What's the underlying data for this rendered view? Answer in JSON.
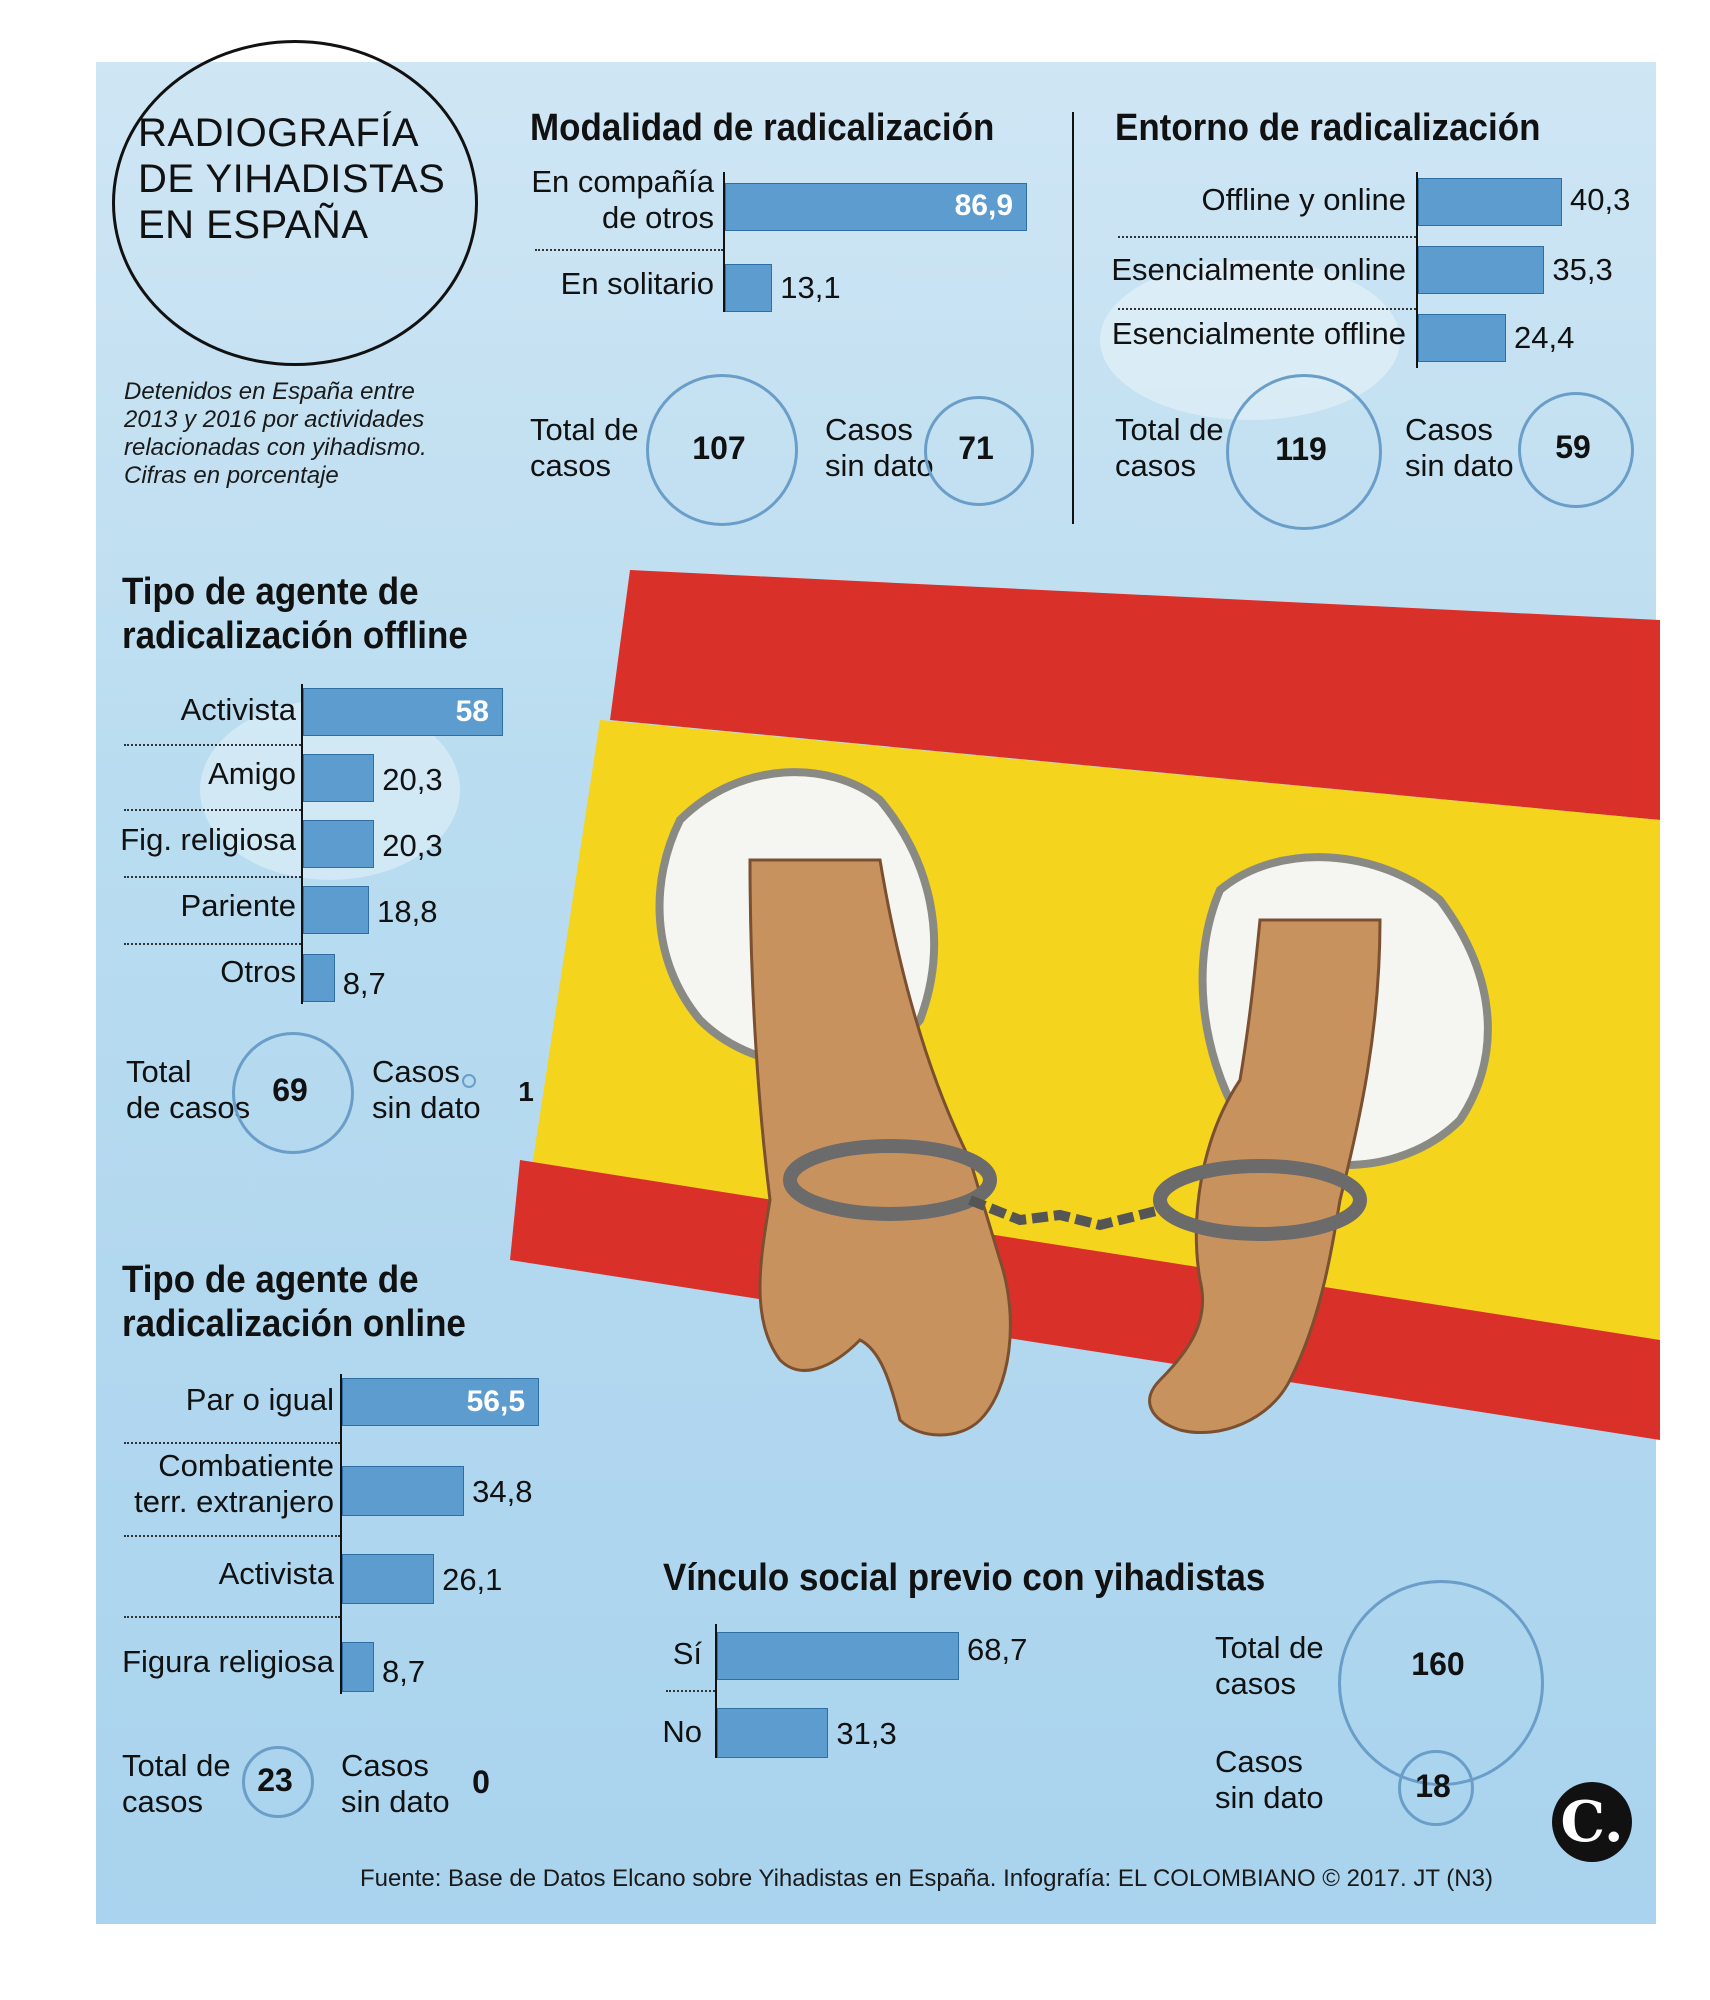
{
  "header": {
    "title_lines": [
      "RADIOGRAFÍA",
      "DE YIHADISTAS",
      "EN ESPAÑA"
    ],
    "description_lines": [
      "Detenidos en España entre",
      "2013 y 2016 por actividades",
      "relacionadas con yihadismo.",
      "Cifras en porcentaje"
    ]
  },
  "labels": {
    "total_l1": "Total de",
    "total_l2": "casos",
    "total_split_l1": "Total",
    "total_split_l2": "de casos",
    "sin_l1": "Casos",
    "sin_l2": "sin dato"
  },
  "source": "Fuente: Base de Datos Elcano sobre Yihadistas en España. Infografía: EL COLOMBIANO © 2017. JT (N3)",
  "logo_letter": "C.",
  "colors": {
    "bar": "#5d9ccf",
    "ring": "#6a9ec8",
    "flag_red": "#d9302a",
    "flag_yellow": "#f4d41c"
  },
  "chart_data": [
    {
      "type": "bar",
      "orientation": "horizontal",
      "title": "Modalidad de radicalización",
      "categories": [
        "En compañía de otros",
        "En solitario"
      ],
      "category_lines": [
        [
          "En compañía",
          "de otros"
        ],
        [
          "En solitario"
        ]
      ],
      "values": [
        86.9,
        13.1
      ],
      "value_labels": [
        "86,9",
        "13,1"
      ],
      "total_casos": "107",
      "casos_sin_dato": "71"
    },
    {
      "type": "bar",
      "orientation": "horizontal",
      "title": "Entorno de radicalización",
      "categories": [
        "Offline y online",
        "Esencialmente online",
        "Esencialmente offline"
      ],
      "category_lines": [
        [
          "Offline y online"
        ],
        [
          "Esencialmente online"
        ],
        [
          "Esencialmente offline"
        ]
      ],
      "values": [
        40.3,
        35.3,
        24.4
      ],
      "value_labels": [
        "40,3",
        "35,3",
        "24,4"
      ],
      "total_casos": "119",
      "casos_sin_dato": "59"
    },
    {
      "type": "bar",
      "orientation": "horizontal",
      "title": "Tipo de agente de radicalización offline",
      "title_lines": [
        "Tipo de agente de",
        "radicalización offline"
      ],
      "categories": [
        "Activista",
        "Amigo",
        "Fig. religiosa",
        "Pariente",
        "Otros"
      ],
      "category_lines": [
        [
          "Activista"
        ],
        [
          "Amigo"
        ],
        [
          "Fig. religiosa"
        ],
        [
          "Pariente"
        ],
        [
          "Otros"
        ]
      ],
      "values": [
        58,
        20.3,
        20.3,
        18.8,
        8.7
      ],
      "value_labels": [
        "58",
        "20,3",
        "20,3",
        "18,8",
        "8,7"
      ],
      "total_casos": "69",
      "casos_sin_dato": "1"
    },
    {
      "type": "bar",
      "orientation": "horizontal",
      "title": "Tipo de agente de radicalización online",
      "title_lines": [
        "Tipo de agente de",
        "radicalización online"
      ],
      "categories": [
        "Par o igual",
        "Combatiente terr. extranjero",
        "Activista",
        "Figura religiosa"
      ],
      "category_lines": [
        [
          "Par o igual"
        ],
        [
          "Combatiente",
          "terr. extranjero"
        ],
        [
          "Activista"
        ],
        [
          "Figura religiosa"
        ]
      ],
      "values": [
        56.5,
        34.8,
        26.1,
        8.7
      ],
      "value_labels": [
        "56,5",
        "34,8",
        "26,1",
        "8,7"
      ],
      "total_casos": "23",
      "casos_sin_dato": "0"
    },
    {
      "type": "bar",
      "orientation": "horizontal",
      "title": "Vínculo social previo con yihadistas",
      "categories": [
        "Sí",
        "No"
      ],
      "category_lines": [
        [
          "Sí"
        ],
        [
          "No"
        ]
      ],
      "values": [
        68.7,
        31.3
      ],
      "value_labels": [
        "68,7",
        "31,3"
      ],
      "total_casos": "160",
      "casos_sin_dato": "18"
    }
  ]
}
